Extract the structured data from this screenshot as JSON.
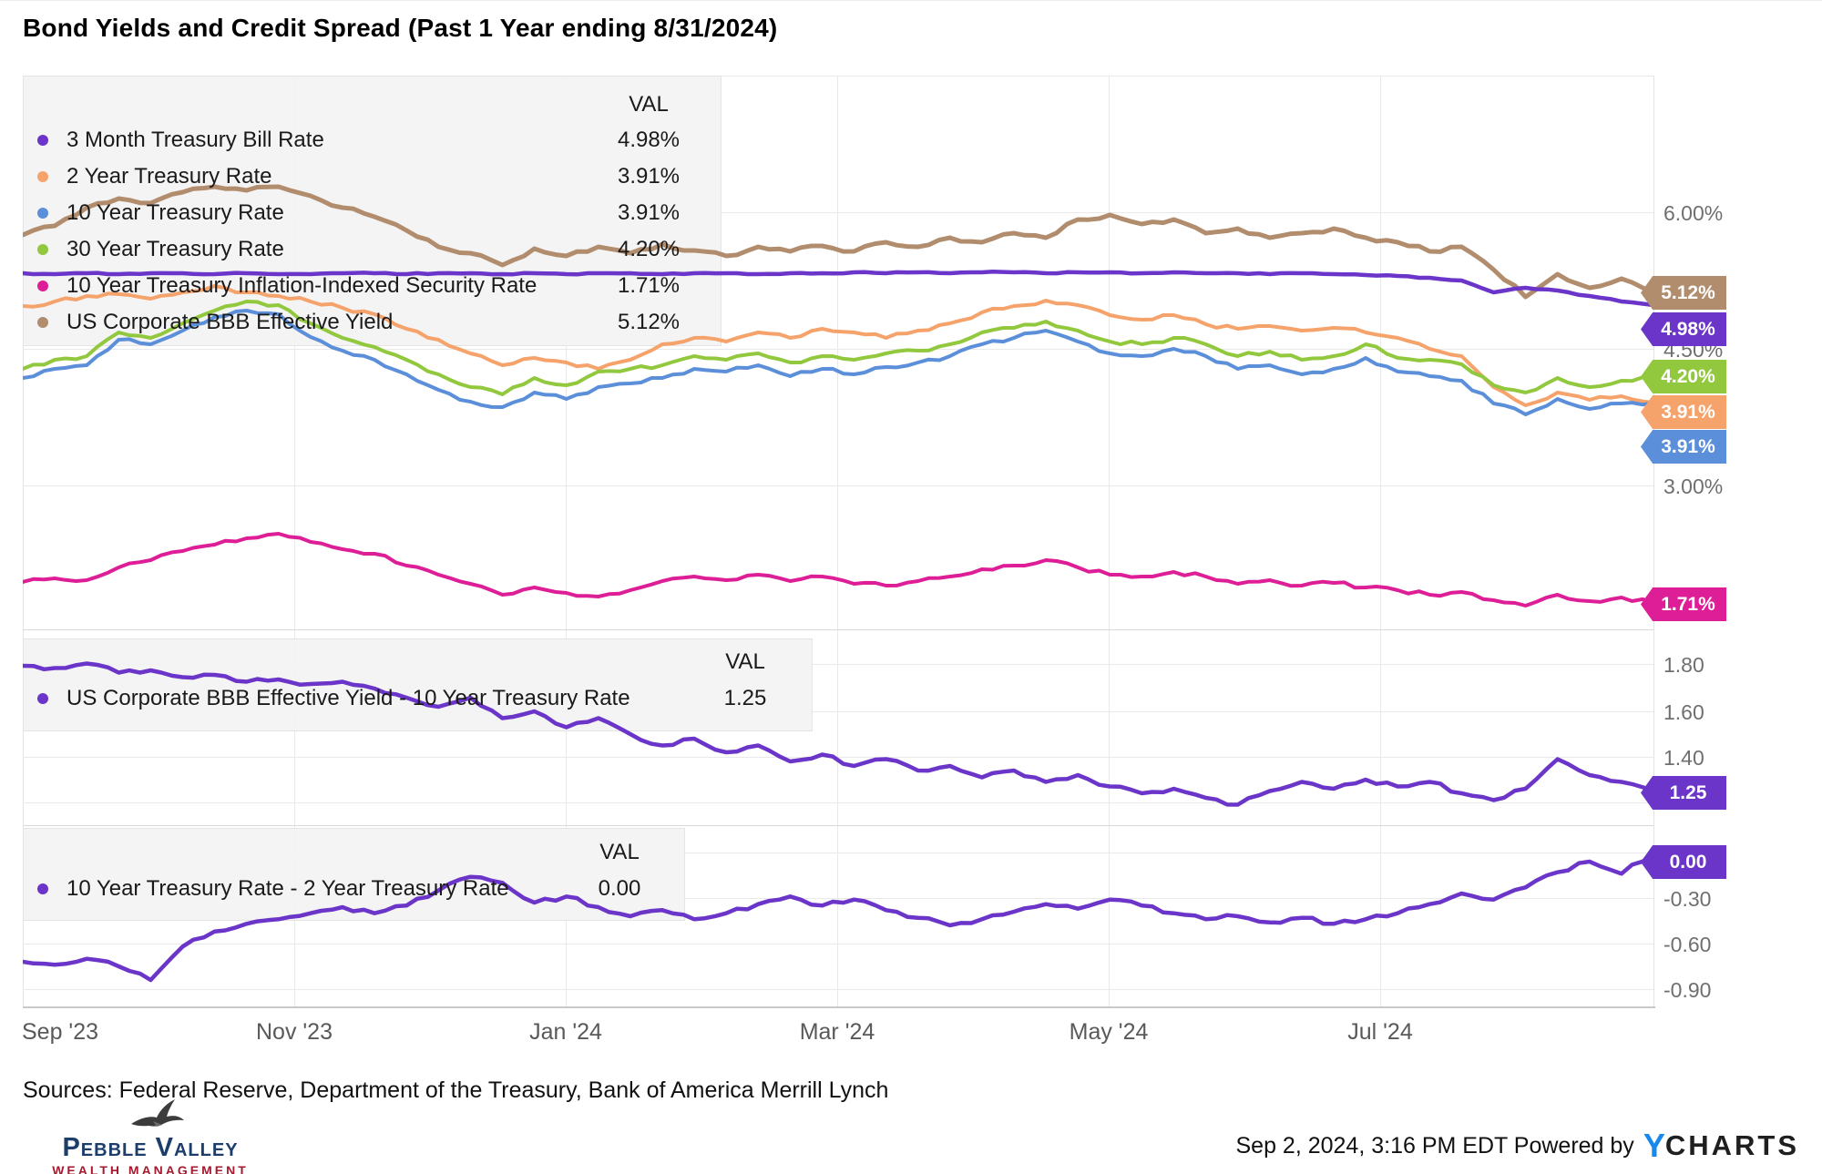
{
  "title": "Bond Yields and Credit Spread (Past 1 Year ending 8/31/2024)",
  "x_axis": {
    "labels": [
      "Sep '23",
      "Nov '23",
      "Jan '24",
      "Mar '24",
      "May '24",
      "Jul '24"
    ]
  },
  "footer": {
    "sources": "Sources: Federal Reserve, Department of the Treasury, Bank of America Merrill Lynch",
    "timestamp": "Sep 2, 2024, 3:16 PM EDT",
    "powered_by": "Powered by",
    "ycharts_y": "Y",
    "ycharts_rest": "CHARTS",
    "logo_name": "Pebble Valley",
    "logo_subtitle": "WEALTH MANAGEMENT",
    "logo_colors": {
      "name": "#1d3d6b",
      "subtitle": "#a6192e"
    }
  },
  "chart_data": {
    "type": "line",
    "title": "Bond Yields and Credit Spread (Past 1 Year ending 8/31/2024)",
    "x_range": [
      "2023-09-01",
      "2024-08-31"
    ],
    "grid": true,
    "legend_position": "top-left-inset",
    "panels": [
      {
        "name": "bond-yields",
        "legend_header": "VAL",
        "ylim": [
          2.8,
          6.5
        ],
        "y_ticks": [
          {
            "label": "6.00%",
            "value": 6.0
          },
          {
            "label": "4.50%",
            "value": 4.5
          },
          {
            "label": "3.00%",
            "value": 3.0
          }
        ],
        "series": [
          {
            "label": "3 Month Treasury Bill Rate",
            "value_label": "4.98%",
            "color": "#6a35c8",
            "values": [
              5.33,
              5.32,
              5.33,
              5.32,
              5.33,
              5.33,
              5.32,
              5.33,
              5.32,
              5.32,
              5.33,
              5.33,
              5.32,
              5.33,
              5.33,
              5.32,
              5.33,
              5.32,
              5.33,
              5.33,
              5.32,
              5.33,
              5.33,
              5.32,
              5.33,
              5.33,
              5.34,
              5.33,
              5.34,
              5.33,
              5.34,
              5.34,
              5.33,
              5.34,
              5.34,
              5.33,
              5.34,
              5.33,
              5.33,
              5.32,
              5.33,
              5.32,
              5.31,
              5.3,
              5.28,
              5.25,
              5.12,
              5.17,
              5.14,
              5.08,
              5.02,
              4.98
            ]
          },
          {
            "label": "2 Year Treasury Rate",
            "value_label": "3.91%",
            "color": "#f5a26b",
            "values": [
              4.97,
              5.02,
              5.08,
              5.1,
              5.05,
              5.12,
              5.19,
              5.12,
              5.08,
              5.02,
              4.95,
              4.88,
              4.72,
              4.6,
              4.45,
              4.32,
              4.4,
              4.35,
              4.28,
              4.38,
              4.55,
              4.62,
              4.58,
              4.68,
              4.62,
              4.72,
              4.68,
              4.62,
              4.7,
              4.78,
              4.9,
              4.97,
              5.03,
              4.98,
              4.87,
              4.82,
              4.87,
              4.77,
              4.72,
              4.75,
              4.7,
              4.73,
              4.68,
              4.62,
              4.5,
              4.42,
              4.08,
              3.88,
              4.02,
              3.94,
              3.98,
              3.91
            ]
          },
          {
            "label": "10 Year Treasury Rate",
            "value_label": "3.91%",
            "color": "#5b8fd9",
            "values": [
              4.18,
              4.28,
              4.32,
              4.6,
              4.55,
              4.7,
              4.85,
              4.92,
              4.88,
              4.63,
              4.48,
              4.38,
              4.22,
              4.05,
              3.92,
              3.86,
              4.02,
              3.95,
              4.08,
              4.12,
              4.18,
              4.28,
              4.25,
              4.32,
              4.2,
              4.28,
              4.22,
              4.3,
              4.35,
              4.42,
              4.55,
              4.62,
              4.7,
              4.58,
              4.45,
              4.42,
              4.5,
              4.42,
              4.28,
              4.32,
              4.22,
              4.28,
              4.4,
              4.25,
              4.2,
              4.15,
              3.9,
              3.78,
              3.95,
              3.84,
              3.9,
              3.91
            ]
          },
          {
            "label": "30 Year Treasury Rate",
            "value_label": "4.20%",
            "color": "#92c83e",
            "values": [
              4.28,
              4.38,
              4.42,
              4.68,
              4.62,
              4.78,
              4.92,
              5.02,
              4.98,
              4.78,
              4.62,
              4.52,
              4.38,
              4.22,
              4.08,
              4.0,
              4.18,
              4.1,
              4.25,
              4.28,
              4.32,
              4.42,
              4.38,
              4.45,
              4.35,
              4.42,
              4.38,
              4.45,
              4.48,
              4.55,
              4.68,
              4.73,
              4.8,
              4.7,
              4.58,
              4.55,
              4.62,
              4.55,
              4.42,
              4.47,
              4.38,
              4.42,
              4.55,
              4.4,
              4.38,
              4.33,
              4.1,
              4.02,
              4.18,
              4.08,
              4.15,
              4.2
            ]
          },
          {
            "label": "10 Year Treasury Inflation-Indexed Security Rate",
            "value_label": "1.71%",
            "color": "#de1e96",
            "values": [
              1.94,
              1.98,
              1.96,
              2.1,
              2.18,
              2.28,
              2.35,
              2.42,
              2.47,
              2.38,
              2.3,
              2.25,
              2.12,
              2.02,
              1.92,
              1.8,
              1.88,
              1.82,
              1.78,
              1.85,
              1.95,
              2.0,
              1.96,
              2.02,
              1.95,
              2.0,
              1.92,
              1.9,
              1.95,
              2.0,
              2.08,
              2.12,
              2.18,
              2.1,
              2.02,
              2.0,
              2.05,
              2.0,
              1.92,
              1.96,
              1.9,
              1.93,
              1.88,
              1.85,
              1.8,
              1.83,
              1.74,
              1.68,
              1.8,
              1.73,
              1.77,
              1.71
            ]
          },
          {
            "label": "US Corporate BBB Effective Yield",
            "value_label": "5.12%",
            "color": "#b18d6e",
            "values": [
              5.75,
              5.85,
              6.05,
              6.15,
              6.1,
              6.22,
              6.28,
              6.24,
              6.28,
              6.18,
              6.05,
              5.95,
              5.8,
              5.62,
              5.55,
              5.42,
              5.6,
              5.52,
              5.62,
              5.55,
              5.65,
              5.58,
              5.52,
              5.62,
              5.57,
              5.63,
              5.57,
              5.67,
              5.62,
              5.72,
              5.67,
              5.77,
              5.72,
              5.92,
              5.97,
              5.87,
              5.92,
              5.77,
              5.82,
              5.72,
              5.77,
              5.82,
              5.72,
              5.67,
              5.57,
              5.62,
              5.37,
              5.07,
              5.32,
              5.17,
              5.27,
              5.12
            ]
          }
        ]
      },
      {
        "name": "credit-spread",
        "legend_header": "VAL",
        "ylim": [
          1.1,
          1.85
        ],
        "y_ticks": [
          {
            "label": "1.80",
            "value": 1.8
          },
          {
            "label": "1.60",
            "value": 1.6
          },
          {
            "label": "1.40",
            "value": 1.4
          }
        ],
        "series": [
          {
            "label": "US Corporate BBB Effective Yield - 10 Year Treasury Rate",
            "value_label": "1.25",
            "color": "#6a35c8",
            "values": [
              1.8,
              1.79,
              1.81,
              1.77,
              1.78,
              1.75,
              1.76,
              1.73,
              1.74,
              1.72,
              1.73,
              1.7,
              1.66,
              1.62,
              1.66,
              1.57,
              1.6,
              1.53,
              1.57,
              1.5,
              1.45,
              1.48,
              1.42,
              1.45,
              1.38,
              1.41,
              1.36,
              1.39,
              1.34,
              1.36,
              1.31,
              1.34,
              1.29,
              1.32,
              1.27,
              1.24,
              1.26,
              1.22,
              1.19,
              1.25,
              1.29,
              1.26,
              1.3,
              1.27,
              1.29,
              1.24,
              1.21,
              1.26,
              1.39,
              1.32,
              1.29,
              1.25
            ]
          }
        ]
      },
      {
        "name": "yield-curve-spread",
        "legend_header": "VAL",
        "ylim": [
          -1.0,
          0.15
        ],
        "y_ticks": [
          {
            "label": "-0.30",
            "value": -0.3
          },
          {
            "label": "-0.60",
            "value": -0.6
          },
          {
            "label": "-0.90",
            "value": -0.9
          }
        ],
        "series": [
          {
            "label": "10 Year Treasury Rate - 2 Year Treasury Rate",
            "value_label": "0.00",
            "color": "#6a35c8",
            "values": [
              -0.72,
              -0.74,
              -0.7,
              -0.75,
              -0.84,
              -0.62,
              -0.52,
              -0.47,
              -0.44,
              -0.4,
              -0.36,
              -0.4,
              -0.35,
              -0.25,
              -0.16,
              -0.2,
              -0.33,
              -0.29,
              -0.36,
              -0.42,
              -0.38,
              -0.44,
              -0.4,
              -0.34,
              -0.29,
              -0.35,
              -0.31,
              -0.38,
              -0.43,
              -0.48,
              -0.44,
              -0.39,
              -0.34,
              -0.37,
              -0.31,
              -0.35,
              -0.4,
              -0.44,
              -0.42,
              -0.46,
              -0.43,
              -0.47,
              -0.44,
              -0.4,
              -0.34,
              -0.27,
              -0.31,
              -0.23,
              -0.13,
              -0.06,
              -0.14,
              0.0
            ]
          }
        ]
      }
    ]
  }
}
